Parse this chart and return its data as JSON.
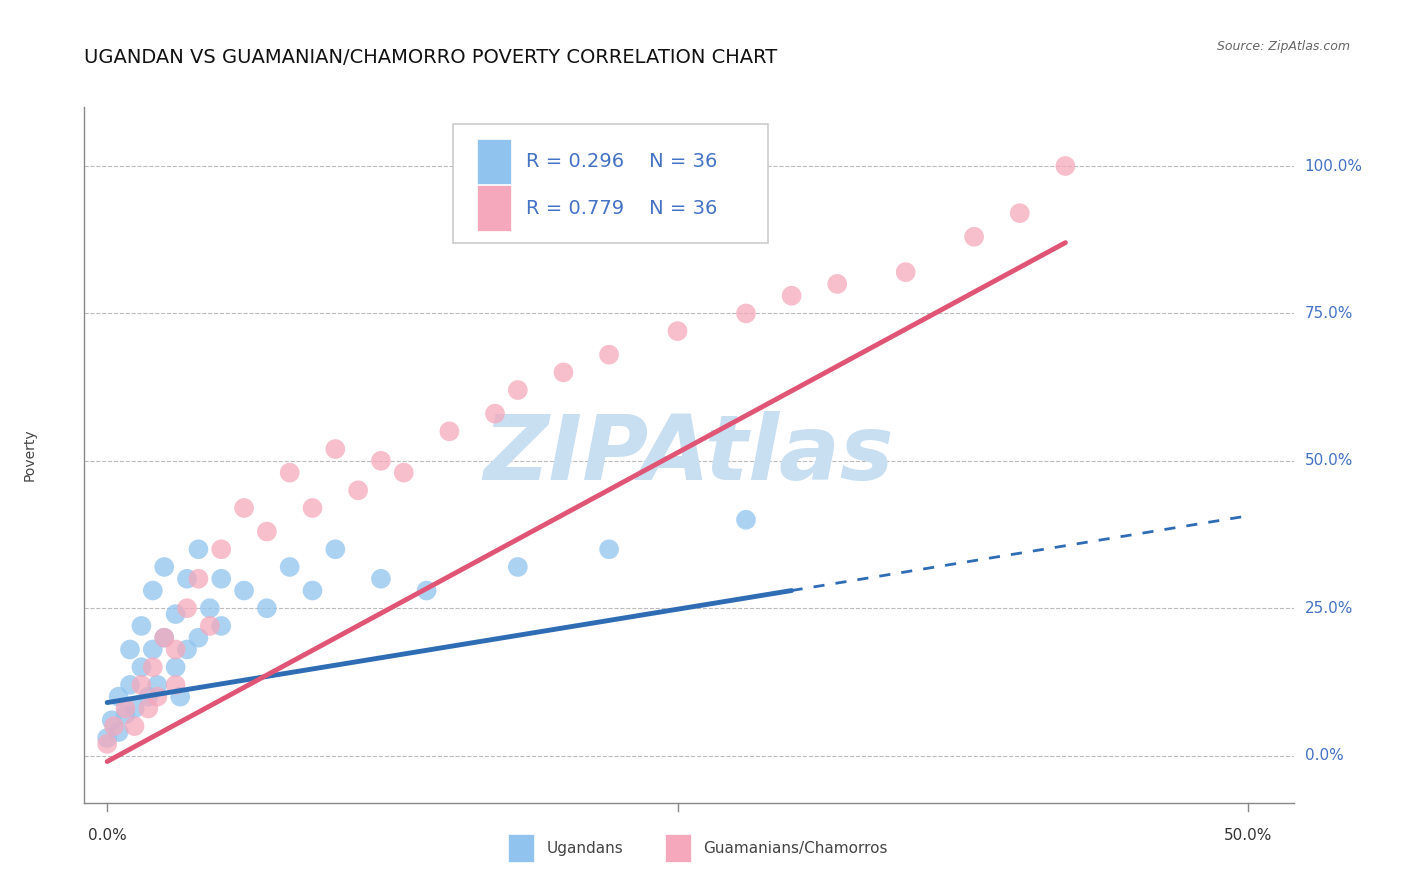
{
  "title": "UGANDAN VS GUAMANIAN/CHAMORRO POVERTY CORRELATION CHART",
  "source": "Source: ZipAtlas.com",
  "ylabel": "Poverty",
  "y_tick_labels": [
    "0.0%",
    "25.0%",
    "50.0%",
    "75.0%",
    "100.0%"
  ],
  "y_tick_values": [
    0.0,
    0.25,
    0.5,
    0.75,
    1.0
  ],
  "xlim": [
    -0.01,
    0.52
  ],
  "ylim": [
    -0.08,
    1.1
  ],
  "ugandan_R": 0.296,
  "guamanian_R": 0.779,
  "N": 36,
  "ugandan_color": "#90C4EE",
  "ugandan_line_color": "#2E6DB4",
  "guamanian_color": "#F5A8BB",
  "guamanian_line_color": "#E05575",
  "background_color": "#FFFFFF",
  "watermark": "ZIPAtlas",
  "watermark_color": "#C8DFF2",
  "ugandan_scatter_x": [
    0.0,
    0.002,
    0.005,
    0.005,
    0.008,
    0.01,
    0.01,
    0.012,
    0.015,
    0.015,
    0.018,
    0.02,
    0.02,
    0.022,
    0.025,
    0.025,
    0.03,
    0.03,
    0.032,
    0.035,
    0.035,
    0.04,
    0.04,
    0.045,
    0.05,
    0.05,
    0.06,
    0.07,
    0.08,
    0.09,
    0.1,
    0.12,
    0.14,
    0.18,
    0.22,
    0.28
  ],
  "ugandan_scatter_y": [
    0.03,
    0.06,
    0.04,
    0.1,
    0.07,
    0.12,
    0.18,
    0.08,
    0.15,
    0.22,
    0.1,
    0.18,
    0.28,
    0.12,
    0.2,
    0.32,
    0.15,
    0.24,
    0.1,
    0.18,
    0.3,
    0.2,
    0.35,
    0.25,
    0.22,
    0.3,
    0.28,
    0.25,
    0.32,
    0.28,
    0.35,
    0.3,
    0.28,
    0.32,
    0.35,
    0.4
  ],
  "guamanian_scatter_x": [
    0.0,
    0.003,
    0.008,
    0.012,
    0.015,
    0.018,
    0.02,
    0.022,
    0.025,
    0.03,
    0.03,
    0.035,
    0.04,
    0.045,
    0.05,
    0.06,
    0.07,
    0.08,
    0.09,
    0.1,
    0.11,
    0.12,
    0.13,
    0.15,
    0.17,
    0.18,
    0.2,
    0.22,
    0.25,
    0.28,
    0.3,
    0.32,
    0.35,
    0.38,
    0.4,
    0.42
  ],
  "guamanian_scatter_y": [
    0.02,
    0.05,
    0.08,
    0.05,
    0.12,
    0.08,
    0.15,
    0.1,
    0.2,
    0.18,
    0.12,
    0.25,
    0.3,
    0.22,
    0.35,
    0.42,
    0.38,
    0.48,
    0.42,
    0.52,
    0.45,
    0.5,
    0.48,
    0.55,
    0.58,
    0.62,
    0.65,
    0.68,
    0.72,
    0.75,
    0.78,
    0.8,
    0.82,
    0.88,
    0.92,
    1.0
  ],
  "title_fontsize": 14,
  "axis_label_fontsize": 10,
  "tick_fontsize": 11,
  "legend_fontsize": 14
}
